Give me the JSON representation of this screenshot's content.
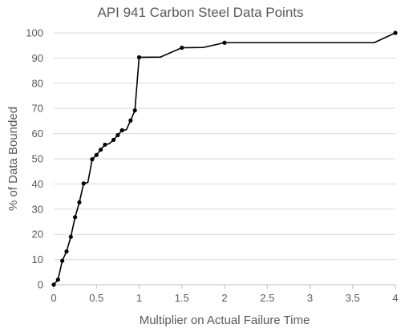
{
  "chart_data": {
    "type": "line",
    "title": "API 941 Carbon Steel Data Points",
    "xlabel": "Multiplier on Actual Failure Time",
    "ylabel": "% of Data Bounded",
    "xlim": [
      0,
      4
    ],
    "ylim": [
      0,
      100
    ],
    "x_ticks": [
      "0",
      "0.5",
      "1",
      "1.5",
      "2",
      "2.5",
      "3",
      "3.5",
      "4"
    ],
    "y_ticks": [
      "0",
      "10",
      "20",
      "30",
      "40",
      "50",
      "60",
      "70",
      "80",
      "90",
      "100"
    ],
    "x_tick_values": [
      0,
      0.5,
      1,
      1.5,
      2,
      2.5,
      3,
      3.5,
      4
    ],
    "y_tick_values": [
      0,
      10,
      20,
      30,
      40,
      50,
      60,
      70,
      80,
      90,
      100
    ],
    "grid": "horizontal",
    "legend": "none",
    "line_color": "#000000",
    "series": [
      {
        "points": [
          {
            "x": 0.0,
            "y": 0.0,
            "marker": true
          },
          {
            "x": 0.05,
            "y": 2.0,
            "marker": true
          },
          {
            "x": 0.1,
            "y": 9.5,
            "marker": true
          },
          {
            "x": 0.15,
            "y": 13.2,
            "marker": true
          },
          {
            "x": 0.2,
            "y": 19.0,
            "marker": true
          },
          {
            "x": 0.25,
            "y": 26.8,
            "marker": true
          },
          {
            "x": 0.3,
            "y": 32.7,
            "marker": true
          },
          {
            "x": 0.35,
            "y": 40.2,
            "marker": true
          },
          {
            "x": 0.4,
            "y": 40.6,
            "marker": false
          },
          {
            "x": 0.45,
            "y": 49.8,
            "marker": true
          },
          {
            "x": 0.5,
            "y": 51.5,
            "marker": true
          },
          {
            "x": 0.55,
            "y": 53.6,
            "marker": true
          },
          {
            "x": 0.6,
            "y": 55.6,
            "marker": true
          },
          {
            "x": 0.65,
            "y": 56.0,
            "marker": false
          },
          {
            "x": 0.7,
            "y": 57.5,
            "marker": true
          },
          {
            "x": 0.75,
            "y": 59.4,
            "marker": true
          },
          {
            "x": 0.8,
            "y": 61.3,
            "marker": true
          },
          {
            "x": 0.85,
            "y": 61.5,
            "marker": false
          },
          {
            "x": 0.9,
            "y": 65.2,
            "marker": true
          },
          {
            "x": 0.95,
            "y": 69.2,
            "marker": true
          },
          {
            "x": 1.0,
            "y": 90.3,
            "marker": true
          },
          {
            "x": 1.25,
            "y": 90.4,
            "marker": false
          },
          {
            "x": 1.5,
            "y": 94.1,
            "marker": true
          },
          {
            "x": 1.75,
            "y": 94.2,
            "marker": false
          },
          {
            "x": 2.0,
            "y": 96.1,
            "marker": true
          },
          {
            "x": 3.75,
            "y": 96.1,
            "marker": false
          },
          {
            "x": 4.0,
            "y": 100.0,
            "marker": true
          }
        ]
      }
    ]
  }
}
